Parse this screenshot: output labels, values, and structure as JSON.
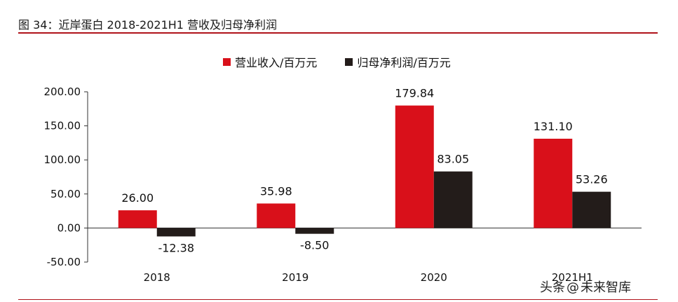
{
  "figure": {
    "title": "图 34：近岸蛋白 2018-2021H1 营收及归母净利润"
  },
  "colors": {
    "accent_rule": "#b0131a",
    "revenue": "#d9101a",
    "net_profit": "#231c1a"
  },
  "watermark": {
    "source": "头条",
    "at": "@",
    "name": "未来智库"
  },
  "chart_data": {
    "type": "bar",
    "categories": [
      "2018",
      "2019",
      "2020",
      "2021H1"
    ],
    "series": [
      {
        "name": "营业收入/百万元",
        "values": [
          26.0,
          35.98,
          179.84,
          131.1
        ],
        "labels": [
          "26.00",
          "35.98",
          "179.84",
          "131.10"
        ]
      },
      {
        "name": "归母净利润/百万元",
        "values": [
          -12.38,
          -8.5,
          83.05,
          53.26
        ],
        "labels": [
          "-12.38",
          "-8.50",
          "83.05",
          "53.26"
        ]
      }
    ],
    "ylim": [
      -50,
      200
    ],
    "yticks": [
      "-50.00",
      "0.00",
      "50.00",
      "100.00",
      "150.00",
      "200.00"
    ],
    "ytick_values": [
      -50,
      0,
      50,
      100,
      150,
      200
    ],
    "legend_position": "top-center",
    "grid": false
  }
}
